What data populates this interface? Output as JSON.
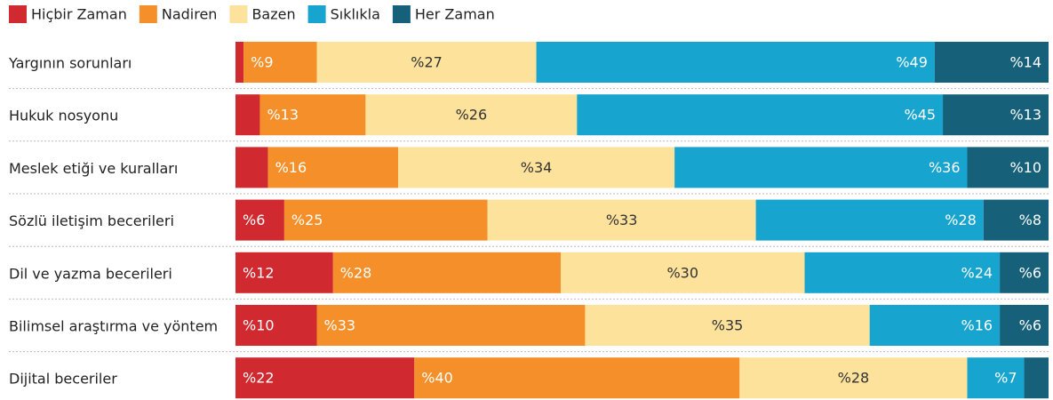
{
  "chart_data": {
    "type": "stacked-bar-horizontal",
    "categories": [
      "Yargının sorunları",
      "Hukuk nosyonu",
      "Meslek etiği ve kuralları",
      "Sözlü iletişim becerileri",
      "Dil ve yazma becerileri",
      "Bilimsel araştırma ve yöntem",
      "Dijital beceriler"
    ],
    "xlim": [
      0,
      100
    ],
    "series": [
      {
        "name": "Hiçbir Zaman",
        "color": "#d0292f",
        "values": [
          1,
          3,
          4,
          6,
          12,
          10,
          22
        ],
        "value_labels": [
          null,
          null,
          null,
          "%6",
          "%12",
          "%10",
          "%22"
        ]
      },
      {
        "name": "Nadiren",
        "color": "#f58f29",
        "values": [
          9,
          13,
          16,
          25,
          28,
          33,
          40
        ],
        "value_labels": [
          "%9",
          "%13",
          "%16",
          "%25",
          "%28",
          "%33",
          "%40"
        ]
      },
      {
        "name": "Bazen",
        "color": "#fde29c",
        "values": [
          27,
          26,
          34,
          33,
          30,
          35,
          28
        ],
        "value_labels": [
          "%27",
          "%26",
          "%34",
          "%33",
          "%30",
          "%35",
          "%28"
        ]
      },
      {
        "name": "Sıklıkla",
        "color": "#17a4cf",
        "values": [
          49,
          45,
          36,
          28,
          24,
          16,
          7
        ],
        "value_labels": [
          "%49",
          "%45",
          "%36",
          "%28",
          "%24",
          "%16",
          "%7"
        ]
      },
      {
        "name": "Her Zaman",
        "color": "#16607a",
        "values": [
          14,
          13,
          10,
          8,
          6,
          6,
          3
        ],
        "value_labels": [
          "%14",
          "%13",
          "%10",
          "%8",
          "%6",
          "%6",
          null
        ]
      }
    ]
  }
}
